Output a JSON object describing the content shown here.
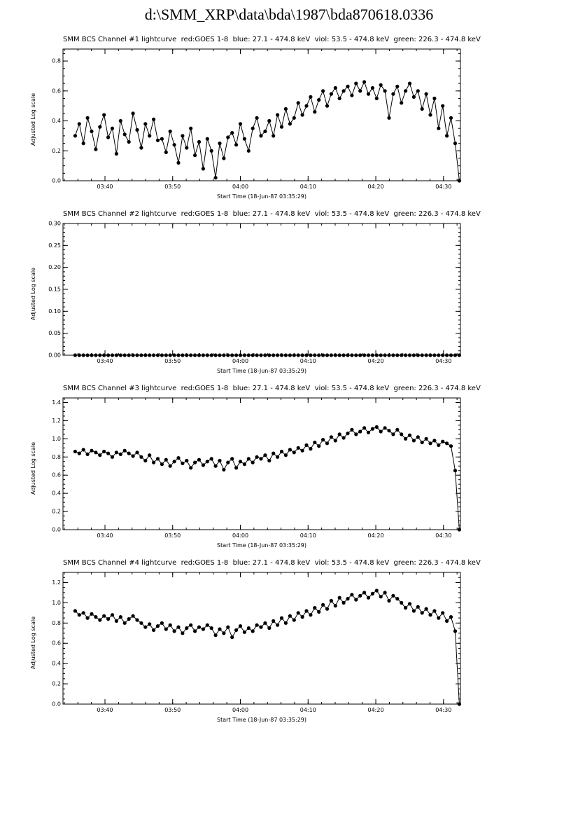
{
  "page": {
    "title": "d:\\SMM_XRP\\data\\bda\\1987\\bda870618.0336",
    "background": "#ffffff",
    "foreground": "#000000"
  },
  "chart_data": [
    {
      "type": "line",
      "marker": "filled-circle",
      "color": "#000000",
      "title": "SMM BCS Channel #1 lightcurve  red:GOES 1-8  blue: 27.1 - 474.8 keV  viol: 53.5 - 474.8 keV  green: 226.3 - 474.8 keV",
      "xlabel": "Start Time (18-Jun-87 03:35:29)",
      "ylabel": "Adjusted Log scale",
      "x_axis": {
        "range": [
          33.8,
          92.5
        ],
        "minor_step": 2,
        "ticks": [
          {
            "v": 40,
            "label": "03:40"
          },
          {
            "v": 50,
            "label": "03:50"
          },
          {
            "v": 60,
            "label": "04:00"
          },
          {
            "v": 70,
            "label": "04:10"
          },
          {
            "v": 80,
            "label": "04:20"
          },
          {
            "v": 90,
            "label": "04:30"
          }
        ]
      },
      "y_axis": {
        "range": [
          0,
          0.88
        ],
        "minor_step": 0.05,
        "ticks": [
          {
            "v": 0,
            "label": "0.0"
          },
          {
            "v": 0.2,
            "label": "0.2"
          },
          {
            "v": 0.4,
            "label": "0.4"
          },
          {
            "v": 0.6,
            "label": "0.6"
          },
          {
            "v": 0.8,
            "label": "0.8"
          }
        ]
      },
      "x_start": 35.6,
      "x_step": 0.61,
      "y": [
        0.3,
        0.38,
        0.25,
        0.42,
        0.33,
        0.21,
        0.36,
        0.44,
        0.29,
        0.35,
        0.18,
        0.4,
        0.31,
        0.26,
        0.45,
        0.34,
        0.22,
        0.38,
        0.3,
        0.41,
        0.27,
        0.28,
        0.19,
        0.33,
        0.24,
        0.12,
        0.3,
        0.22,
        0.35,
        0.17,
        0.26,
        0.08,
        0.28,
        0.2,
        0.02,
        0.25,
        0.15,
        0.29,
        0.32,
        0.24,
        0.38,
        0.28,
        0.2,
        0.35,
        0.42,
        0.3,
        0.33,
        0.4,
        0.3,
        0.44,
        0.36,
        0.48,
        0.38,
        0.42,
        0.52,
        0.44,
        0.5,
        0.56,
        0.46,
        0.54,
        0.6,
        0.5,
        0.58,
        0.62,
        0.55,
        0.6,
        0.63,
        0.57,
        0.65,
        0.6,
        0.66,
        0.58,
        0.62,
        0.55,
        0.64,
        0.6,
        0.42,
        0.58,
        0.63,
        0.52,
        0.6,
        0.65,
        0.56,
        0.6,
        0.48,
        0.58,
        0.44,
        0.55,
        0.35,
        0.5,
        0.3,
        0.42,
        0.25,
        0.0
      ]
    },
    {
      "type": "line",
      "marker": "filled-circle",
      "color": "#000000",
      "title": "SMM BCS Channel #2 lightcurve  red:GOES 1-8  blue: 27.1 - 474.8 keV  viol: 53.5 - 474.8 keV  green: 226.3 - 474.8 keV",
      "xlabel": "Start Time (18-Jun-87 03:35:29)",
      "ylabel": "Adjusted Log scale",
      "x_axis": {
        "range": [
          33.8,
          92.5
        ],
        "minor_step": 2,
        "ticks": [
          {
            "v": 40,
            "label": "03:40"
          },
          {
            "v": 50,
            "label": "03:50"
          },
          {
            "v": 60,
            "label": "04:00"
          },
          {
            "v": 70,
            "label": "04:10"
          },
          {
            "v": 80,
            "label": "04:20"
          },
          {
            "v": 90,
            "label": "04:30"
          }
        ]
      },
      "y_axis": {
        "range": [
          0,
          0.3
        ],
        "minor_step": 0.01,
        "ticks": [
          {
            "v": 0,
            "label": "0.00"
          },
          {
            "v": 0.05,
            "label": "0.05"
          },
          {
            "v": 0.1,
            "label": "0.10"
          },
          {
            "v": 0.15,
            "label": "0.15"
          },
          {
            "v": 0.2,
            "label": "0.20"
          },
          {
            "v": 0.25,
            "label": "0.25"
          },
          {
            "v": 0.3,
            "label": "0.30"
          }
        ]
      },
      "x_start": 35.6,
      "x_step": 0.61,
      "y": [
        0,
        0,
        0,
        0,
        0,
        0,
        0,
        0,
        0,
        0,
        0,
        0,
        0,
        0,
        0,
        0,
        0,
        0,
        0,
        0,
        0,
        0,
        0,
        0,
        0,
        0,
        0,
        0,
        0,
        0,
        0,
        0,
        0,
        0,
        0,
        0,
        0,
        0,
        0,
        0,
        0,
        0,
        0,
        0,
        0,
        0,
        0,
        0,
        0,
        0,
        0,
        0,
        0,
        0,
        0,
        0,
        0,
        0,
        0,
        0,
        0,
        0,
        0,
        0,
        0,
        0,
        0,
        0,
        0,
        0,
        0,
        0,
        0,
        0,
        0,
        0,
        0,
        0,
        0,
        0,
        0,
        0,
        0,
        0,
        0,
        0,
        0,
        0,
        0,
        0,
        0,
        0,
        0,
        0
      ]
    },
    {
      "type": "line",
      "marker": "filled-circle",
      "color": "#000000",
      "title": "SMM BCS Channel #3 lightcurve  red:GOES 1-8  blue: 27.1 - 474.8 keV  viol: 53.5 - 474.8 keV  green: 226.3 - 474.8 keV",
      "xlabel": "Start Time (18-Jun-87 03:35:29)",
      "ylabel": "Adjusted Log scale",
      "x_axis": {
        "range": [
          33.8,
          92.5
        ],
        "minor_step": 2,
        "ticks": [
          {
            "v": 40,
            "label": "03:40"
          },
          {
            "v": 50,
            "label": "03:50"
          },
          {
            "v": 60,
            "label": "04:00"
          },
          {
            "v": 70,
            "label": "04:10"
          },
          {
            "v": 80,
            "label": "04:20"
          },
          {
            "v": 90,
            "label": "04:30"
          }
        ]
      },
      "y_axis": {
        "range": [
          0,
          1.45
        ],
        "minor_step": 0.05,
        "ticks": [
          {
            "v": 0,
            "label": "0.0"
          },
          {
            "v": 0.2,
            "label": "0.2"
          },
          {
            "v": 0.4,
            "label": "0.4"
          },
          {
            "v": 0.6,
            "label": "0.6"
          },
          {
            "v": 0.8,
            "label": "0.8"
          },
          {
            "v": 1.0,
            "label": "1.0"
          },
          {
            "v": 1.2,
            "label": "1.2"
          },
          {
            "v": 1.4,
            "label": "1.4"
          }
        ]
      },
      "x_start": 35.6,
      "x_step": 0.61,
      "y": [
        0.86,
        0.84,
        0.88,
        0.83,
        0.87,
        0.85,
        0.82,
        0.86,
        0.84,
        0.8,
        0.85,
        0.83,
        0.87,
        0.84,
        0.81,
        0.85,
        0.8,
        0.76,
        0.82,
        0.74,
        0.78,
        0.72,
        0.77,
        0.7,
        0.75,
        0.79,
        0.73,
        0.76,
        0.68,
        0.74,
        0.77,
        0.71,
        0.75,
        0.78,
        0.7,
        0.76,
        0.66,
        0.74,
        0.78,
        0.68,
        0.75,
        0.72,
        0.78,
        0.74,
        0.8,
        0.78,
        0.82,
        0.76,
        0.84,
        0.8,
        0.86,
        0.82,
        0.88,
        0.85,
        0.9,
        0.87,
        0.93,
        0.89,
        0.96,
        0.92,
        0.99,
        0.95,
        1.02,
        0.98,
        1.05,
        1.01,
        1.06,
        1.1,
        1.05,
        1.08,
        1.12,
        1.07,
        1.11,
        1.13,
        1.08,
        1.12,
        1.09,
        1.05,
        1.1,
        1.05,
        1.0,
        1.04,
        0.98,
        1.02,
        0.96,
        1.0,
        0.95,
        0.98,
        0.93,
        0.97,
        0.95,
        0.92,
        0.65,
        0.0
      ]
    },
    {
      "type": "line",
      "marker": "filled-circle",
      "color": "#000000",
      "title": "SMM BCS Channel #4 lightcurve  red:GOES 1-8  blue: 27.1 - 474.8 keV  viol: 53.5 - 474.8 keV  green: 226.3 - 474.8 keV",
      "xlabel": "Start Time (18-Jun-87 03:35:29)",
      "ylabel": "Adjusted Log scale",
      "x_axis": {
        "range": [
          33.8,
          92.5
        ],
        "minor_step": 2,
        "ticks": [
          {
            "v": 40,
            "label": "03:40"
          },
          {
            "v": 50,
            "label": "03:50"
          },
          {
            "v": 60,
            "label": "04:00"
          },
          {
            "v": 70,
            "label": "04:10"
          },
          {
            "v": 80,
            "label": "04:20"
          },
          {
            "v": 90,
            "label": "04:30"
          }
        ]
      },
      "y_axis": {
        "range": [
          0,
          1.3
        ],
        "minor_step": 0.05,
        "ticks": [
          {
            "v": 0,
            "label": "0.0"
          },
          {
            "v": 0.2,
            "label": "0.2"
          },
          {
            "v": 0.4,
            "label": "0.4"
          },
          {
            "v": 0.6,
            "label": "0.6"
          },
          {
            "v": 0.8,
            "label": "0.8"
          },
          {
            "v": 1.0,
            "label": "1.0"
          },
          {
            "v": 1.2,
            "label": "1.2"
          }
        ]
      },
      "x_start": 35.6,
      "x_step": 0.61,
      "y": [
        0.92,
        0.88,
        0.9,
        0.85,
        0.89,
        0.86,
        0.83,
        0.87,
        0.84,
        0.88,
        0.82,
        0.86,
        0.8,
        0.84,
        0.87,
        0.83,
        0.8,
        0.76,
        0.79,
        0.73,
        0.77,
        0.8,
        0.74,
        0.78,
        0.72,
        0.76,
        0.7,
        0.75,
        0.78,
        0.72,
        0.76,
        0.74,
        0.78,
        0.75,
        0.68,
        0.74,
        0.7,
        0.76,
        0.66,
        0.73,
        0.77,
        0.71,
        0.75,
        0.72,
        0.78,
        0.76,
        0.8,
        0.75,
        0.82,
        0.78,
        0.85,
        0.8,
        0.87,
        0.83,
        0.9,
        0.86,
        0.92,
        0.88,
        0.95,
        0.91,
        0.98,
        0.94,
        1.02,
        0.97,
        1.05,
        1.0,
        1.04,
        1.08,
        1.03,
        1.07,
        1.1,
        1.05,
        1.09,
        1.12,
        1.06,
        1.1,
        1.02,
        1.07,
        1.04,
        1.0,
        0.95,
        0.99,
        0.92,
        0.96,
        0.9,
        0.94,
        0.88,
        0.92,
        0.85,
        0.9,
        0.82,
        0.86,
        0.72,
        0.0
      ]
    }
  ]
}
